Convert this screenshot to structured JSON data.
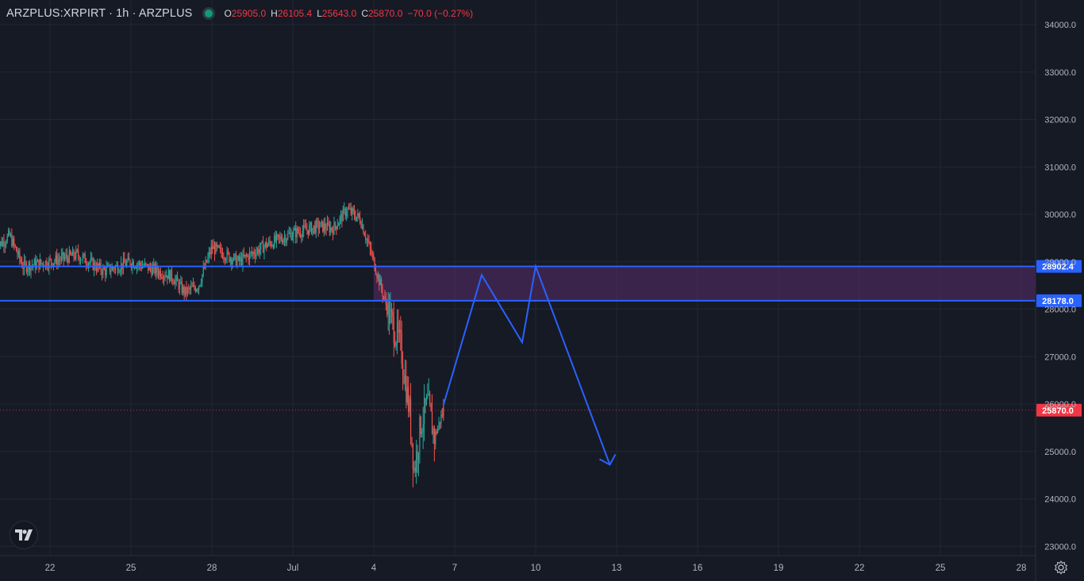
{
  "header": {
    "symbol": "ARZPLUS:XRPIRT · 1h · ARZPLUS",
    "open_label": "O",
    "open": "25905.0",
    "high_label": "H",
    "high": "26105.4",
    "low_label": "L",
    "low": "25643.0",
    "close_label": "C",
    "close": "25870.0",
    "change": "−70.0 (−0.27%)",
    "status_color": "#0f9a7c"
  },
  "colors": {
    "background": "#161a25",
    "grid": "#232733",
    "up": "#26a69a",
    "down": "#ef5350",
    "line": "#2962ff",
    "zone": "#5b2d6b",
    "price_badge": "#f23645"
  },
  "icons": [
    "tradingview-logo-icon",
    "settings-gear-icon"
  ],
  "chart_data": {
    "type": "candlestick",
    "title": "ARZPLUS:XRPIRT · 1h · ARZPLUS",
    "ylim": [
      22830,
      34300
    ],
    "x_tick_labels": [
      "22",
      "25",
      "28",
      "Jul",
      "4",
      "7",
      "10",
      "13",
      "16",
      "19",
      "22",
      "25",
      "28"
    ],
    "y_tick_labels": [
      "34000.0",
      "33000.0",
      "32000.0",
      "31000.0",
      "30000.0",
      "29000.0",
      "28000.0",
      "27000.0",
      "26000.0",
      "25000.0",
      "24000.0",
      "23000.0"
    ],
    "horizontal_levels": [
      {
        "value": 28902.4,
        "label": "28902.4"
      },
      {
        "value": 28178.0,
        "label": "28178.0"
      }
    ],
    "last_price": {
      "value": 25870.0,
      "label": "25870.0"
    },
    "zone": {
      "from": 28178.0,
      "to": 28902.4
    },
    "price_path_annotation": {
      "points": [
        {
          "x": "Jul 6 14:00",
          "y": 25980
        },
        {
          "x": "Jul 8",
          "y": 28720
        },
        {
          "x": "Jul 9 12:00",
          "y": 27300
        },
        {
          "x": "Jul 10",
          "y": 28902
        },
        {
          "x": "Jul 12 18:00",
          "y": 24720
        }
      ]
    },
    "price_anchors": [
      {
        "x": "Jun 20",
        "y": 29300
      },
      {
        "x": "Jun 20 12:00",
        "y": 29550
      },
      {
        "x": "Jun 21",
        "y": 28900
      },
      {
        "x": "Jun 22",
        "y": 29000
      },
      {
        "x": "Jun 23",
        "y": 29150
      },
      {
        "x": "Jun 24",
        "y": 28800
      },
      {
        "x": "Jun 25",
        "y": 29000
      },
      {
        "x": "Jun 26",
        "y": 28800
      },
      {
        "x": "Jun 26 12:00",
        "y": 28700
      },
      {
        "x": "Jun 27",
        "y": 28350
      },
      {
        "x": "Jun 27 12:00",
        "y": 28500
      },
      {
        "x": "Jun 28",
        "y": 29300
      },
      {
        "x": "Jun 29",
        "y": 29000
      },
      {
        "x": "Jun 30",
        "y": 29350
      },
      {
        "x": "Jul 1",
        "y": 29600
      },
      {
        "x": "Jul 2",
        "y": 29750
      },
      {
        "x": "Jul 2 12:00",
        "y": 29700
      },
      {
        "x": "Jul 3",
        "y": 30100
      },
      {
        "x": "Jul 3 12:00",
        "y": 29900
      },
      {
        "x": "Jul 4",
        "y": 29000
      },
      {
        "x": "Jul 4 12:00",
        "y": 28000
      },
      {
        "x": "Jul 5",
        "y": 27200
      },
      {
        "x": "Jul 5 08:00",
        "y": 25800
      },
      {
        "x": "Jul 5 12:00",
        "y": 24600
      },
      {
        "x": "Jul 5 18:00",
        "y": 25600
      },
      {
        "x": "Jul 6",
        "y": 26000
      },
      {
        "x": "Jul 6 06:00",
        "y": 25300
      },
      {
        "x": "Jul 6 14:00",
        "y": 25870
      }
    ]
  }
}
